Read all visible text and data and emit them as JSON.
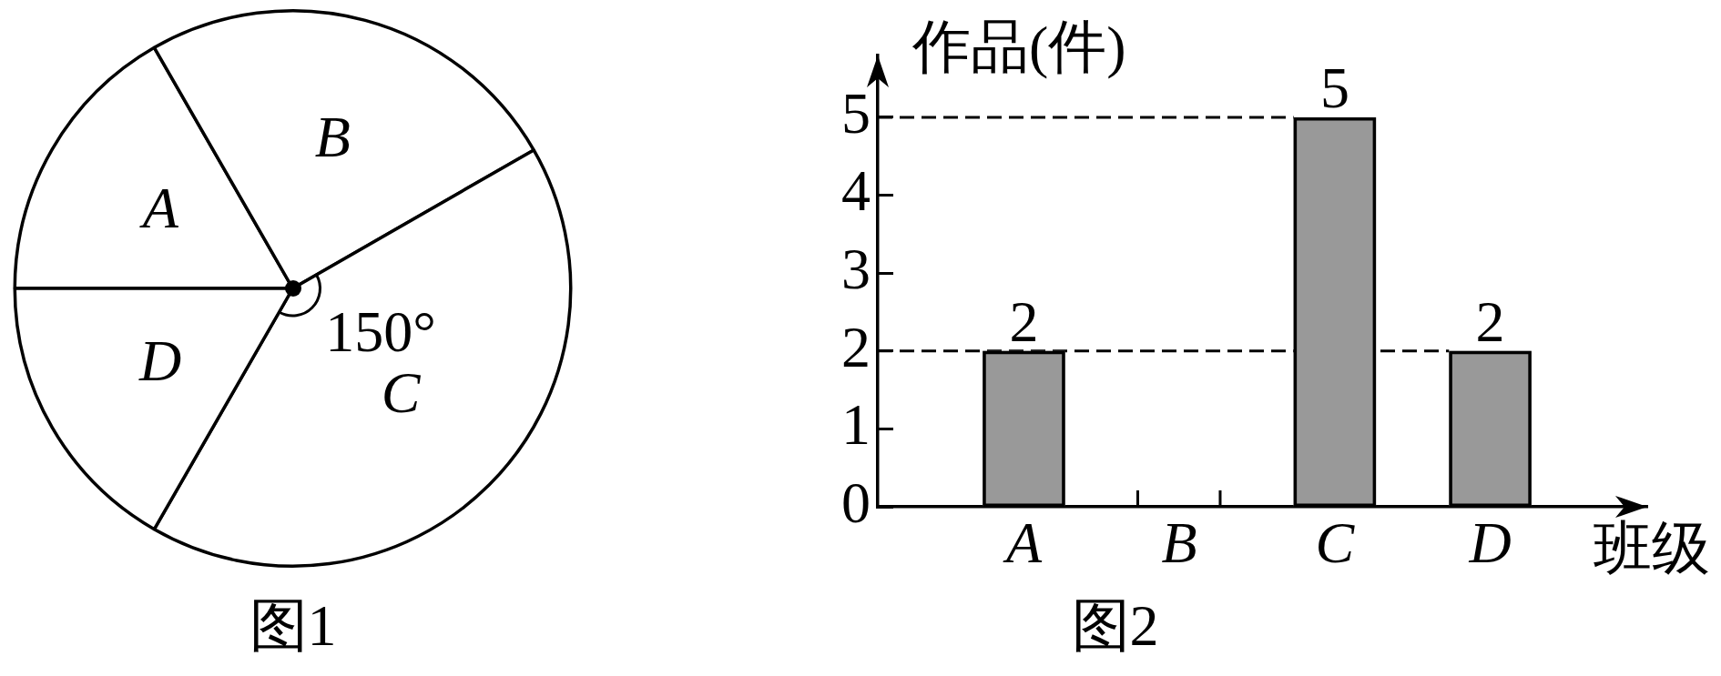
{
  "chart_data": [
    {
      "type": "pie",
      "title": "图1",
      "categories": [
        "A",
        "B",
        "C",
        "D"
      ],
      "values": [
        16.7,
        25,
        41.6,
        16.7
      ],
      "colors": [
        "#ffffff",
        "#ffffff",
        "#ffffff",
        "#ffffff"
      ],
      "annotations": [
        "150°"
      ]
    },
    {
      "type": "bar",
      "title": "图2",
      "xlabel": "班级",
      "ylabel": "作品(件)",
      "categories": [
        "A",
        "B",
        "C",
        "D"
      ],
      "values": [
        2,
        null,
        5,
        2
      ],
      "color": "#999999",
      "ylim": [
        0,
        5.8
      ],
      "yticks": [
        0,
        1,
        2,
        3,
        4,
        5
      ],
      "data_labels": true,
      "ref_lines": [
        {
          "axis": "y",
          "value": 5,
          "line_style": "dashed",
          "color": "#000000"
        },
        {
          "axis": "y",
          "value": 2,
          "line_style": "dashed",
          "color": "#000000"
        }
      ]
    }
  ]
}
